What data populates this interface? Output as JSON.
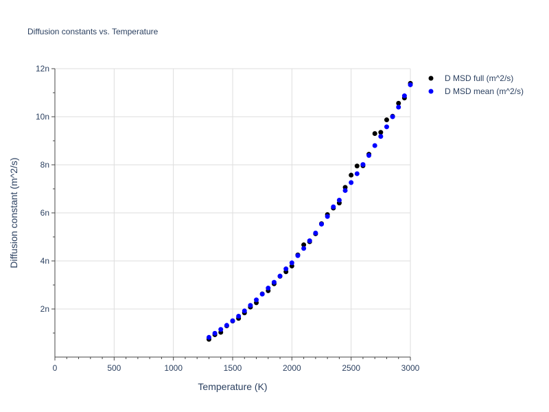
{
  "chart_data": {
    "type": "scatter",
    "title": "Diffusion constants vs. Temperature",
    "xlabel": "Temperature (K)",
    "ylabel": "Diffusion constant (m^2/s)",
    "xlim": [
      0,
      3000
    ],
    "ylim": [
      0,
      1.2e-08
    ],
    "x_ticks": [
      {
        "value": 0,
        "label": "0"
      },
      {
        "value": 500,
        "label": "500"
      },
      {
        "value": 1000,
        "label": "1000"
      },
      {
        "value": 1500,
        "label": "1500"
      },
      {
        "value": 2000,
        "label": "2000"
      },
      {
        "value": 2500,
        "label": "2500"
      },
      {
        "value": 3000,
        "label": "3000"
      }
    ],
    "y_ticks": [
      {
        "value": 2e-09,
        "label": "2n"
      },
      {
        "value": 4e-09,
        "label": "4n"
      },
      {
        "value": 6e-09,
        "label": "6n"
      },
      {
        "value": 8e-09,
        "label": "8n"
      },
      {
        "value": 1e-08,
        "label": "10n"
      },
      {
        "value": 1.2e-08,
        "label": "12n"
      }
    ],
    "grid": true,
    "legend_position": "top-right",
    "x": [
      1300,
      1350,
      1400,
      1450,
      1500,
      1550,
      1600,
      1650,
      1700,
      1750,
      1800,
      1850,
      1900,
      1950,
      2000,
      2050,
      2100,
      2150,
      2200,
      2250,
      2300,
      2350,
      2400,
      2450,
      2500,
      2550,
      2600,
      2650,
      2700,
      2750,
      2800,
      2850,
      2900,
      2950,
      3000
    ],
    "series": [
      {
        "name": "D MSD full (m^2/s)",
        "color": "#000000",
        "values": [
          7.4e-10,
          9.3e-10,
          1.03e-09,
          1.3e-09,
          1.5e-09,
          1.61e-09,
          1.84e-09,
          2.08e-09,
          2.26e-09,
          2.63e-09,
          2.76e-09,
          3.05e-09,
          3.36e-09,
          3.55e-09,
          3.79e-09,
          4.25e-09,
          4.67e-09,
          4.8e-09,
          5.13e-09,
          5.55e-09,
          5.93e-09,
          6.2e-09,
          6.41e-09,
          7.06e-09,
          7.57e-09,
          7.95e-09,
          7.96e-09,
          8.44e-09,
          9.3e-09,
          9.35e-09,
          9.87e-09,
          1.002e-08,
          1.056e-08,
          1.078e-08,
          1.139e-08
        ]
      },
      {
        "name": "D MSD mean (m^2/s)",
        "color": "#0000ff",
        "values": [
          8.2e-10,
          9.9e-10,
          1.15e-09,
          1.32e-09,
          1.51e-09,
          1.7e-09,
          1.92e-09,
          2.15e-09,
          2.38e-09,
          2.62e-09,
          2.87e-09,
          3.11e-09,
          3.37e-09,
          3.67e-09,
          3.92e-09,
          4.22e-09,
          4.52e-09,
          4.84e-09,
          5.16e-09,
          5.53e-09,
          5.85e-09,
          6.25e-09,
          6.53e-09,
          6.93e-09,
          7.26e-09,
          7.63e-09,
          8.01e-09,
          8.39e-09,
          8.8e-09,
          9.18e-09,
          9.58e-09,
          1e-08,
          1.04e-08,
          1.087e-08,
          1.133e-08
        ]
      }
    ]
  }
}
